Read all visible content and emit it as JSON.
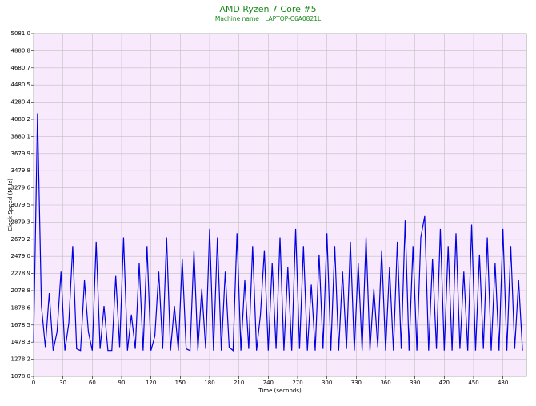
{
  "chart_data": {
    "type": "line",
    "title": "AMD Ryzen 7 Core #5",
    "subtitle": "Machine name : LAPTOP-C6A0821L",
    "x_label": "Time (seconds)",
    "y_label": "Clock Speed (MHz)",
    "xlim": [
      0,
      504
    ],
    "ylim": [
      1078,
      5081
    ],
    "xticks": [
      0,
      30,
      60,
      90,
      120,
      150,
      180,
      210,
      240,
      270,
      300,
      330,
      360,
      390,
      420,
      450,
      480
    ],
    "yticks": [
      {
        "value": 1078,
        "label": "1078.0"
      },
      1278.2,
      1478.3,
      1678.5,
      1878.6,
      2078.8,
      2278.9,
      {
        "value": 2479,
        "label": "2479.0"
      },
      2679.2,
      2879.3,
      3079.5,
      3279.6,
      3479.8,
      3679.9,
      3880.1,
      4080.2,
      4280.4,
      4480.5,
      4680.7,
      4880.8,
      {
        "value": 5081,
        "label": "5081.0"
      }
    ],
    "grid": true,
    "series": [
      {
        "name": "Clock Speed",
        "color": "#0000e0",
        "x": [
          0,
          4,
          8,
          12,
          16,
          20,
          24,
          28,
          32,
          36,
          40,
          44,
          48,
          52,
          56,
          60,
          64,
          68,
          72,
          76,
          80,
          84,
          88,
          92,
          96,
          100,
          104,
          108,
          112,
          116,
          120,
          124,
          128,
          132,
          136,
          140,
          144,
          148,
          152,
          156,
          160,
          164,
          168,
          172,
          176,
          180,
          184,
          188,
          192,
          196,
          200,
          204,
          208,
          212,
          216,
          220,
          224,
          228,
          232,
          236,
          240,
          244,
          248,
          252,
          256,
          260,
          264,
          268,
          272,
          276,
          280,
          284,
          288,
          292,
          296,
          300,
          304,
          308,
          312,
          316,
          320,
          324,
          328,
          332,
          336,
          340,
          344,
          348,
          352,
          356,
          360,
          364,
          368,
          372,
          376,
          380,
          384,
          388,
          392,
          396,
          400,
          404,
          408,
          412,
          416,
          420,
          424,
          428,
          432,
          436,
          440,
          444,
          448,
          452,
          456,
          460,
          464,
          468,
          472,
          476,
          480,
          484,
          488,
          492,
          496,
          500
        ],
        "values": [
          1480,
          4150,
          1900,
          1420,
          2050,
          1380,
          1600,
          2300,
          1380,
          1700,
          2600,
          1400,
          1380,
          2200,
          1600,
          1380,
          2650,
          1400,
          1900,
          1380,
          1380,
          2250,
          1420,
          2700,
          1380,
          1800,
          1400,
          2400,
          1380,
          2600,
          1380,
          1550,
          2300,
          1400,
          2700,
          1380,
          1900,
          1380,
          2450,
          1400,
          1380,
          2550,
          1380,
          2100,
          1400,
          2800,
          1380,
          2700,
          1380,
          2300,
          1420,
          1380,
          2750,
          1380,
          2200,
          1400,
          2600,
          1380,
          1800,
          2550,
          1380,
          2400,
          1400,
          2700,
          1380,
          2350,
          1380,
          2800,
          1400,
          2600,
          1380,
          2150,
          1380,
          2500,
          1400,
          2750,
          1380,
          2600,
          1380,
          2300,
          1400,
          2650,
          1380,
          2400,
          1380,
          2700,
          1380,
          2100,
          1420,
          2550,
          1380,
          2350,
          1380,
          2650,
          1400,
          2900,
          1380,
          2600,
          1380,
          2700,
          2950,
          1380,
          2450,
          1400,
          2800,
          1380,
          2600,
          1380,
          2750,
          1400,
          2300,
          1380,
          2850,
          1380,
          2500,
          1400,
          2700,
          1380,
          2400,
          1380,
          2800,
          1380,
          2600,
          1400,
          2200,
          1380
        ]
      }
    ]
  }
}
